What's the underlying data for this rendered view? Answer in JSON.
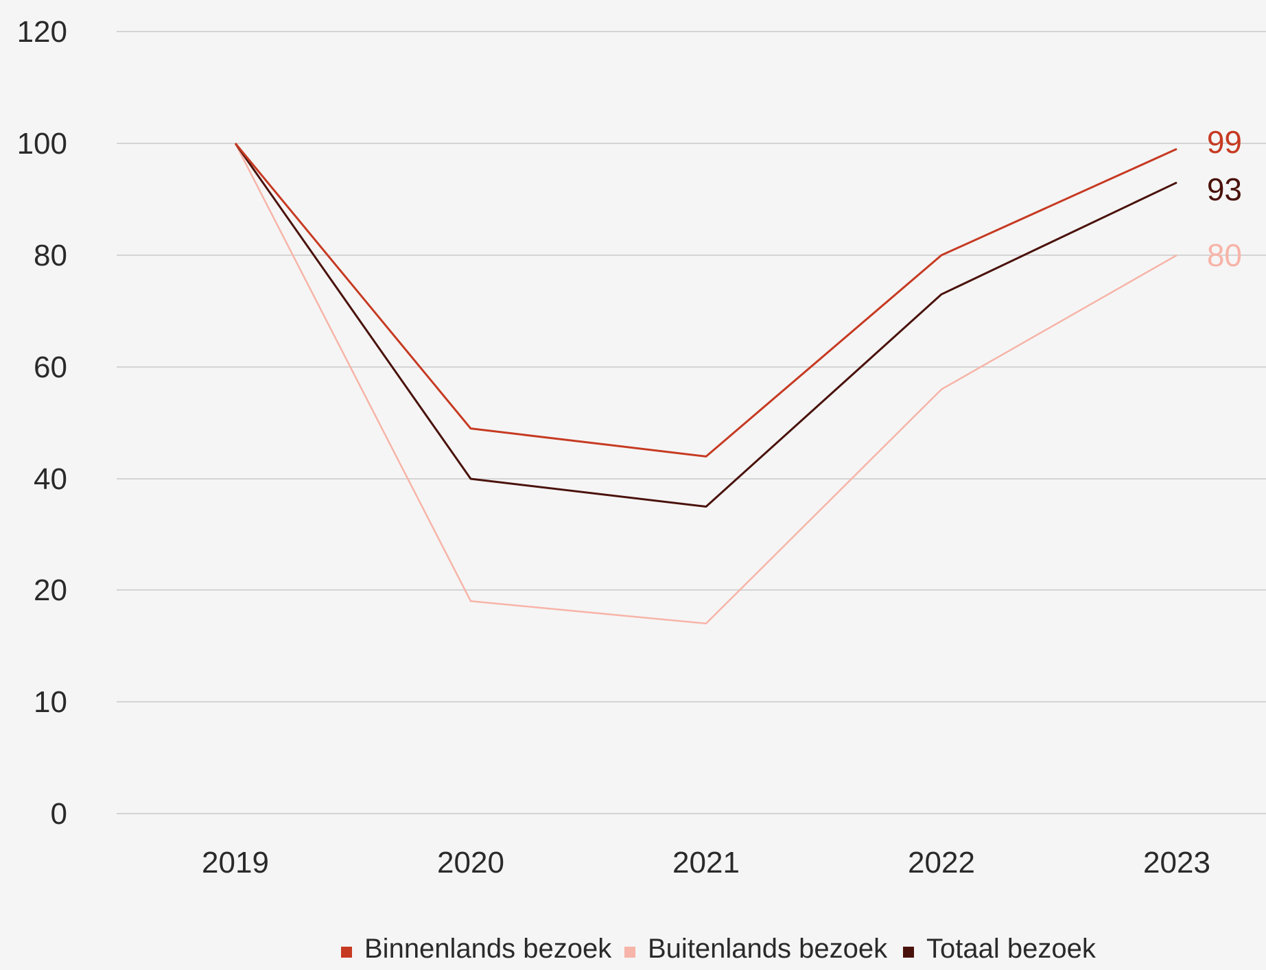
{
  "chart_data": {
    "type": "line",
    "categories": [
      "2019",
      "2020",
      "2021",
      "2022",
      "2023"
    ],
    "y_ticks": [
      0,
      10,
      20,
      40,
      60,
      80,
      100,
      120
    ],
    "series": [
      {
        "name": "Binnenlands bezoek",
        "color": "#c63a22",
        "values": [
          100,
          49,
          44,
          80,
          99
        ],
        "end_label": "99"
      },
      {
        "name": "Buitenlands bezoek",
        "color": "#f7b4a8",
        "values": [
          100,
          19,
          17,
          56,
          80
        ],
        "end_label": "80"
      },
      {
        "name": "Totaal bezoek",
        "color": "#4a120c",
        "values": [
          100,
          40,
          35,
          73,
          93
        ],
        "end_label": "93"
      }
    ],
    "grid": true,
    "legend_position": "bottom"
  }
}
